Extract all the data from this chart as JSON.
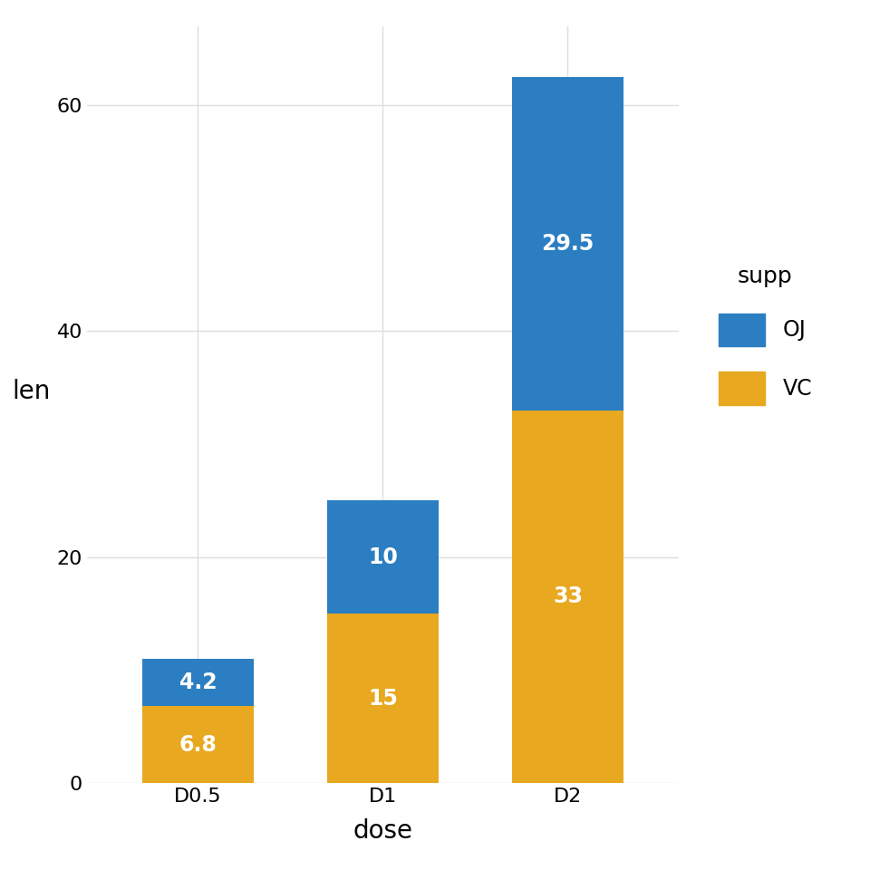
{
  "categories": [
    "D0.5",
    "D1",
    "D2"
  ],
  "vc_values": [
    6.8,
    15.0,
    33.0
  ],
  "oj_values": [
    4.2,
    10.0,
    29.5
  ],
  "vc_color": "#E8A820",
  "oj_color": "#2B7EC1",
  "title": "",
  "xlabel": "dose",
  "ylabel": "len",
  "ylim": [
    0,
    67
  ],
  "yticks": [
    0,
    20,
    40,
    60
  ],
  "legend_title": "supp",
  "legend_labels": [
    "OJ",
    "VC"
  ],
  "bar_width": 0.6,
  "axis_label_fontsize": 20,
  "tick_fontsize": 16,
  "legend_fontsize": 17,
  "background_color": "#FFFFFF",
  "grid_color": "#DEDEDE",
  "text_color": "white",
  "label_text_fontsize": 17
}
